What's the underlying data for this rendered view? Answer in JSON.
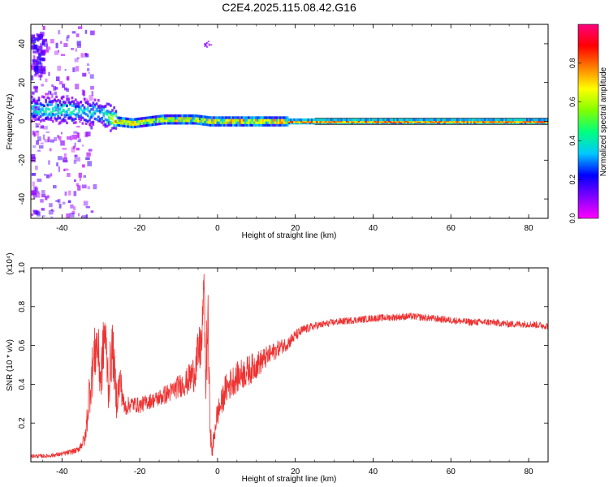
{
  "figure": {
    "title": "C2E4.2025.115.08.42.G16"
  },
  "chart_data": [
    {
      "type": "heatmap",
      "xlabel": "Height of straight line (km)",
      "ylabel": "Frequency (Hz)",
      "xlim": [
        -48,
        85
      ],
      "ylim": [
        -50,
        50
      ],
      "xticks": [
        -40,
        -20,
        0,
        20,
        40,
        60,
        80
      ],
      "yticks": [
        -40,
        -20,
        0,
        20,
        40
      ],
      "colorbar": {
        "label": "Normalized spectral amplitude",
        "range": [
          0.0,
          1.0
        ],
        "ticks": [
          0.0,
          0.2,
          0.4,
          0.6,
          0.8
        ],
        "colormap": [
          "#ff00ff",
          "#8000ff",
          "#0000ff",
          "#00c8ff",
          "#00ff80",
          "#80ff00",
          "#ffff00",
          "#ff8000",
          "#ff0000",
          "#ff0080"
        ]
      },
      "ridge": {
        "x": [
          -48,
          -40,
          -35,
          -30,
          -26,
          -22,
          -18,
          -14,
          -10,
          -6,
          -2,
          2,
          6,
          10,
          14,
          18,
          30,
          50,
          70,
          85
        ],
        "frequency": [
          6,
          6,
          5,
          4,
          0,
          -1,
          0,
          1,
          1,
          1,
          0,
          0,
          0,
          0,
          0,
          0,
          0,
          0,
          0,
          0
        ],
        "amplitude": [
          0.4,
          0.45,
          0.4,
          0.35,
          0.8,
          0.8,
          0.7,
          0.75,
          0.8,
          0.75,
          0.75,
          0.8,
          0.85,
          0.8,
          0.8,
          0.9,
          0.9,
          0.9,
          0.9,
          0.9
        ]
      }
    },
    {
      "type": "line",
      "xlabel": "Height of straight line (km)",
      "ylabel": "SNR (10 * v/v)",
      "yscale_label": "(x10⁴)",
      "xlim": [
        -48,
        85
      ],
      "ylim": [
        0.0,
        1.0
      ],
      "xticks": [
        -40,
        -20,
        0,
        20,
        40,
        60,
        80
      ],
      "yticks": [
        0.2,
        0.4,
        0.6,
        0.8,
        1.0
      ],
      "series": [
        {
          "color": "#ee3333",
          "x": [
            -48,
            -44,
            -40,
            -36,
            -34,
            -33,
            -32,
            -31,
            -30,
            -29,
            -28,
            -27,
            -26,
            -25,
            -24,
            -22,
            -20,
            -18,
            -16,
            -14,
            -12,
            -10,
            -8,
            -6,
            -5,
            -4,
            -3.5,
            -3,
            -2.5,
            -2,
            -1.5,
            -1,
            -0.5,
            0,
            1,
            2,
            4,
            6,
            8,
            10,
            12,
            14,
            16,
            18,
            20,
            22,
            25,
            30,
            35,
            40,
            45,
            50,
            55,
            60,
            65,
            70,
            75,
            80,
            85
          ],
          "y": [
            0.03,
            0.03,
            0.04,
            0.06,
            0.12,
            0.35,
            0.5,
            0.62,
            0.42,
            0.68,
            0.4,
            0.6,
            0.32,
            0.42,
            0.28,
            0.3,
            0.29,
            0.31,
            0.32,
            0.34,
            0.36,
            0.39,
            0.41,
            0.46,
            0.55,
            0.62,
            0.95,
            0.4,
            0.75,
            0.25,
            0.05,
            0.1,
            0.2,
            0.25,
            0.3,
            0.37,
            0.42,
            0.45,
            0.47,
            0.5,
            0.53,
            0.56,
            0.59,
            0.61,
            0.65,
            0.68,
            0.7,
            0.72,
            0.73,
            0.74,
            0.745,
            0.75,
            0.74,
            0.73,
            0.72,
            0.72,
            0.71,
            0.71,
            0.7
          ],
          "noise": [
            0.01,
            0.01,
            0.012,
            0.015,
            0.04,
            0.12,
            0.15,
            0.15,
            0.15,
            0.15,
            0.15,
            0.14,
            0.1,
            0.1,
            0.05,
            0.04,
            0.04,
            0.04,
            0.04,
            0.05,
            0.05,
            0.06,
            0.07,
            0.1,
            0.12,
            0.15,
            0.05,
            0.2,
            0.2,
            0.1,
            0.04,
            0.06,
            0.06,
            0.07,
            0.07,
            0.08,
            0.08,
            0.08,
            0.08,
            0.07,
            0.06,
            0.05,
            0.04,
            0.035,
            0.03,
            0.025,
            0.02,
            0.018,
            0.018,
            0.018,
            0.018,
            0.018,
            0.018,
            0.018,
            0.018,
            0.018,
            0.018,
            0.018,
            0.018
          ]
        }
      ]
    }
  ]
}
